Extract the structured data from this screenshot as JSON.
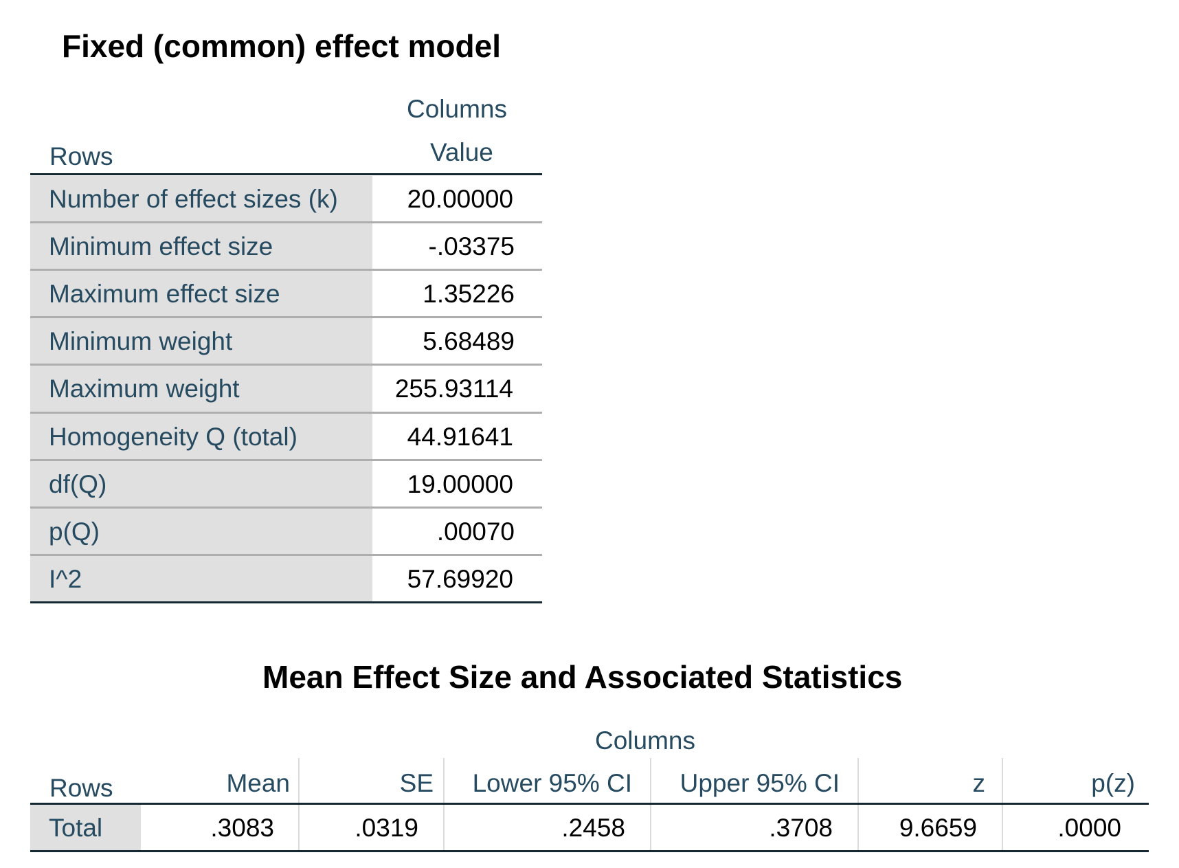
{
  "table1": {
    "title": "Fixed (common) effect model",
    "columns_label": "Columns",
    "rows_label": "Rows",
    "value_label": "Value",
    "rows": [
      {
        "label": "Number of effect sizes (k)",
        "value": "20.00000"
      },
      {
        "label": "Minimum effect size",
        "value": "-.03375"
      },
      {
        "label": "Maximum effect size",
        "value": "1.35226"
      },
      {
        "label": "Minimum weight",
        "value": "5.68489"
      },
      {
        "label": "Maximum weight",
        "value": "255.93114"
      },
      {
        "label": "Homogeneity Q (total)",
        "value": "44.91641"
      },
      {
        "label": "df(Q)",
        "value": "19.00000"
      },
      {
        "label": "p(Q)",
        "value": ".00070"
      },
      {
        "label": "I^2",
        "value": "57.69920"
      }
    ]
  },
  "table2": {
    "title": "Mean Effect Size and Associated Statistics",
    "columns_label": "Columns",
    "rows_label": "Rows",
    "headers": [
      "Mean",
      "SE",
      "Lower 95% CI",
      "Upper 95% CI",
      "z",
      "p(z)"
    ],
    "row": {
      "label": "Total",
      "values": [
        ".3083",
        ".0319",
        ".2458",
        ".3708",
        "9.6659",
        ".0000"
      ]
    }
  }
}
